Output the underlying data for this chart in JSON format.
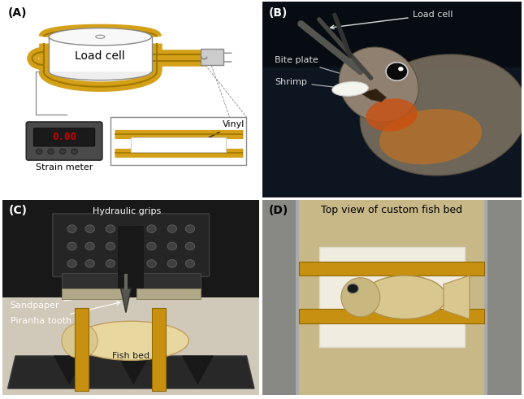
{
  "figure_width": 6.45,
  "figure_height": 4.91,
  "dpi": 100,
  "background_color": "#ffffff",
  "border_color": "#1a1a1a",
  "panel_labels": [
    "(A)",
    "(B)",
    "(C)",
    "(D)"
  ],
  "panel_label_fontsize": 10,
  "panel_A": {
    "load_cell_text": "Load cell",
    "load_cell_text_fontsize": 10,
    "strain_meter_text": "Strain meter",
    "strain_meter_text_fontsize": 8,
    "vinyl_text": "Vinyl",
    "vinyl_text_fontsize": 8,
    "display_text": "0.00",
    "display_color": "#cc0000",
    "display_fontsize": 9,
    "strip_color": "#d4a017",
    "strip_edge_color": "#a07800",
    "bg_color": "#f0f0ec"
  },
  "panel_B": {
    "bg_color": "#0d1820",
    "labels": [
      "Load cell",
      "Bite plate",
      "Shrimp"
    ],
    "label_color": "#dddddd",
    "label_fontsize": 8
  },
  "panel_C": {
    "bg_color": "#1e1e1e",
    "labels": [
      "Hydraulic grips",
      "Sandpaper",
      "Piranha tooth",
      "Fish bed"
    ],
    "label_color": "#dddddd",
    "label_fontsize": 8
  },
  "panel_D": {
    "bg_color": "#555555",
    "title": "Top view of custom fish bed",
    "title_fontsize": 9,
    "label_color": "#000000"
  }
}
